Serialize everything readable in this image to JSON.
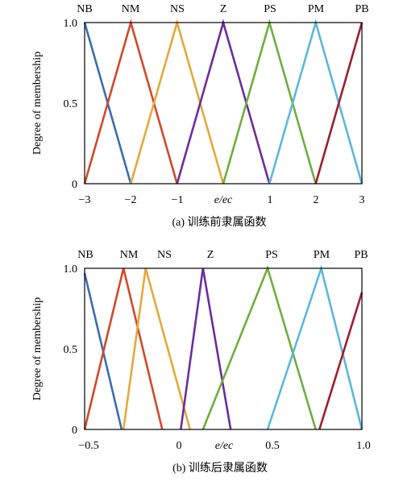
{
  "chart_data": [
    {
      "type": "line",
      "ylabel": "Degree of membership",
      "xlabel": "e/ec",
      "caption": "(a) 训练前隶属函数",
      "xlim": [
        -3,
        3
      ],
      "ylim": [
        0,
        1
      ],
      "x_tick_labels": [
        "−3",
        "−2",
        "−1",
        "e/ec",
        "1",
        "2",
        "3"
      ],
      "y_tick_labels": [
        "0",
        "0.5",
        "1.0"
      ],
      "series": [
        {
          "name": "NB",
          "color": "#3a6eb0",
          "points": [
            [
              -3,
              1
            ],
            [
              -2,
              0
            ]
          ]
        },
        {
          "name": "NM",
          "color": "#d2482a",
          "points": [
            [
              -3,
              0
            ],
            [
              -2,
              1
            ],
            [
              -1,
              0
            ]
          ]
        },
        {
          "name": "NS",
          "color": "#e5a83a",
          "points": [
            [
              -2,
              0
            ],
            [
              -1,
              1
            ],
            [
              0,
              0
            ]
          ]
        },
        {
          "name": "Z",
          "color": "#6a2e9b",
          "points": [
            [
              -1,
              0
            ],
            [
              0,
              1
            ],
            [
              1,
              0
            ]
          ]
        },
        {
          "name": "PS",
          "color": "#6fae3e",
          "points": [
            [
              0,
              0
            ],
            [
              1,
              1
            ],
            [
              2,
              0
            ]
          ]
        },
        {
          "name": "PM",
          "color": "#5bb8db",
          "points": [
            [
              1,
              0
            ],
            [
              2,
              1
            ],
            [
              3,
              0
            ]
          ]
        },
        {
          "name": "PB",
          "color": "#9b1f2f",
          "points": [
            [
              2,
              0
            ],
            [
              3,
              1
            ]
          ]
        }
      ]
    },
    {
      "type": "line",
      "ylabel": "Degree of membership",
      "xlabel": "e/ec",
      "caption": "(b) 训练后隶属函数",
      "xlim": [
        -0.5,
        1.0
      ],
      "ylim": [
        0,
        1
      ],
      "x_tick_labels": [
        "−0.5",
        "0",
        "e/ec",
        "0.5",
        "1.0"
      ],
      "y_tick_labels": [
        "0",
        "0.5",
        "1.0"
      ],
      "series": [
        {
          "name": "NB",
          "color": "#3a6eb0",
          "points": [
            [
              -0.5,
              0.97
            ],
            [
              -0.3,
              0
            ]
          ]
        },
        {
          "name": "NM",
          "color": "#d2482a",
          "points": [
            [
              -0.5,
              0
            ],
            [
              -0.29,
              1
            ],
            [
              -0.08,
              0
            ]
          ]
        },
        {
          "name": "NS",
          "color": "#e5a83a",
          "points": [
            [
              -0.29,
              0
            ],
            [
              -0.17,
              1
            ],
            [
              0.07,
              0
            ]
          ]
        },
        {
          "name": "Z",
          "color": "#6a2e9b",
          "points": [
            [
              0.02,
              0
            ],
            [
              0.14,
              1
            ],
            [
              0.29,
              0
            ]
          ]
        },
        {
          "name": "PS",
          "color": "#6fae3e",
          "points": [
            [
              0.14,
              0
            ],
            [
              0.49,
              1
            ],
            [
              0.75,
              0
            ]
          ]
        },
        {
          "name": "PM",
          "color": "#5bb8db",
          "points": [
            [
              0.49,
              0
            ],
            [
              0.78,
              1
            ],
            [
              1.0,
              0
            ]
          ]
        },
        {
          "name": "PB",
          "color": "#9b1f2f",
          "points": [
            [
              0.77,
              0
            ],
            [
              1.0,
              0.85
            ]
          ]
        }
      ]
    }
  ]
}
